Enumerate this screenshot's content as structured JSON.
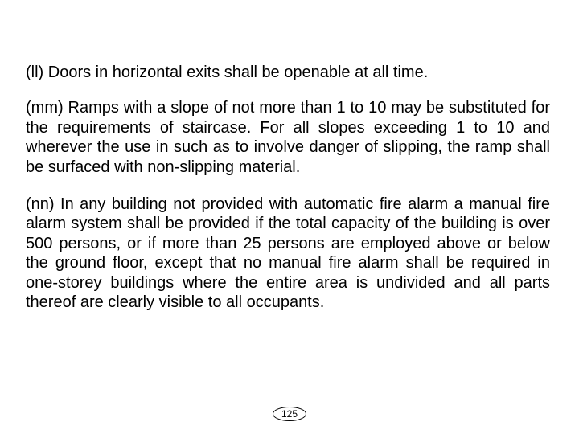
{
  "document": {
    "paragraphs": [
      "(ll) Doors in horizontal exits shall be openable at all time.",
      "(mm) Ramps with a slope of not more than 1 to 10 may be substituted for the requirements of staircase. For all slopes exceeding 1 to 10 and wherever the use in such as to involve danger of slipping, the ramp shall be surfaced with non-slipping material.",
      "(nn) In any building not provided with automatic fire alarm a manual fire alarm system shall be provided if the total capacity of the building is over 500 persons, or if more than 25 persons are employed above or below the ground floor, except that no manual fire alarm shall be required in one-storey buildings where the entire area is undivided and all parts thereof are clearly visible to all occupants."
    ],
    "page_number": "125",
    "text_color": "#000000",
    "background_color": "#ffffff",
    "font_size_body": 20,
    "font_size_pagenum": 12
  }
}
